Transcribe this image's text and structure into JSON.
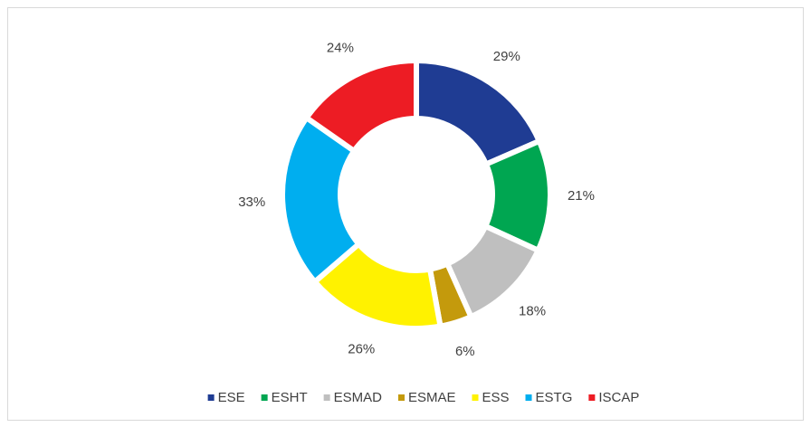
{
  "chart_data": {
    "type": "donut",
    "categories": [
      "ESE",
      "ESHT",
      "ESMAD",
      "ESMAE",
      "ESS",
      "ESTG",
      "ISCAP"
    ],
    "values": [
      29,
      21,
      18,
      6,
      26,
      33,
      24
    ],
    "value_labels": [
      "29%",
      "21%",
      "18%",
      "6%",
      "26%",
      "33%",
      "24%"
    ],
    "colors": [
      "#1f3c93",
      "#00a651",
      "#bfbfbf",
      "#c49a0c",
      "#fff200",
      "#00aeef",
      "#ed1c24"
    ],
    "legend": "bottom"
  }
}
